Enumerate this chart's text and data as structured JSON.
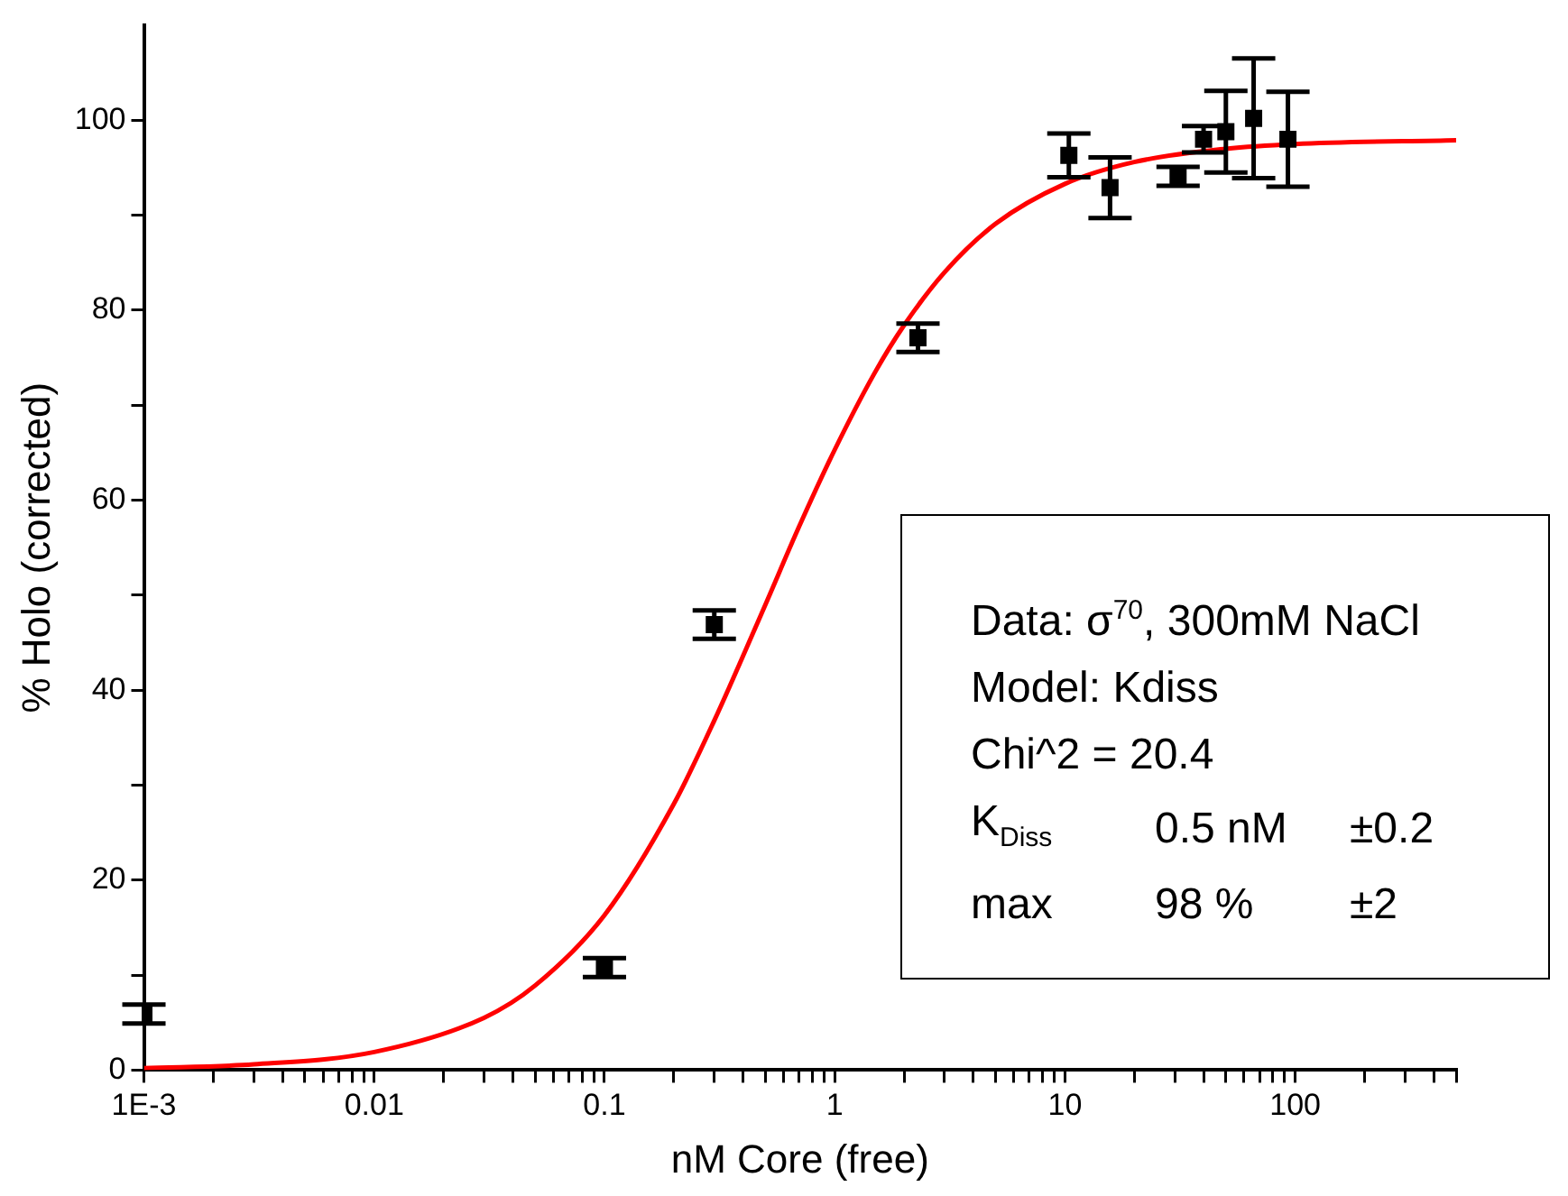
{
  "chart_data": {
    "type": "scatter",
    "xlabel": "nM Core (free)",
    "ylabel": "% Holo (corrected)",
    "log": "x",
    "grid": false,
    "legend": false,
    "xlim": [
      0.001,
      500
    ],
    "ylim": [
      0,
      110
    ],
    "xticks": [
      {
        "value": 0.001,
        "label": "1E-3"
      },
      {
        "value": 0.002,
        "label": null
      },
      {
        "value": 0.003,
        "label": null
      },
      {
        "value": 0.004,
        "label": null
      },
      {
        "value": 0.005,
        "label": null
      },
      {
        "value": 0.006,
        "label": null
      },
      {
        "value": 0.007,
        "label": null
      },
      {
        "value": 0.008,
        "label": null
      },
      {
        "value": 0.009,
        "label": null
      },
      0.01,
      {
        "value": 0.02,
        "label": null
      },
      {
        "value": 0.03,
        "label": null
      },
      {
        "value": 0.04,
        "label": null
      },
      {
        "value": 0.05,
        "label": null
      },
      {
        "value": 0.06,
        "label": null
      },
      {
        "value": 0.07,
        "label": null
      },
      {
        "value": 0.08,
        "label": null
      },
      {
        "value": 0.09,
        "label": null
      },
      0.1,
      {
        "value": 0.2,
        "label": null
      },
      {
        "value": 0.3,
        "label": null
      },
      {
        "value": 0.4,
        "label": null
      },
      {
        "value": 0.5,
        "label": null
      },
      {
        "value": 0.6,
        "label": null
      },
      {
        "value": 0.7,
        "label": null
      },
      {
        "value": 0.8,
        "label": null
      },
      {
        "value": 0.9,
        "label": null
      },
      1,
      {
        "value": 2,
        "label": null
      },
      {
        "value": 3,
        "label": null
      },
      {
        "value": 4,
        "label": null
      },
      {
        "value": 5,
        "label": null
      },
      {
        "value": 6,
        "label": null
      },
      {
        "value": 7,
        "label": null
      },
      {
        "value": 8,
        "label": null
      },
      {
        "value": 9,
        "label": null
      },
      10,
      {
        "value": 20,
        "label": null
      },
      {
        "value": 30,
        "label": null
      },
      {
        "value": 40,
        "label": null
      },
      {
        "value": 50,
        "label": null
      },
      {
        "value": 60,
        "label": null
      },
      {
        "value": 70,
        "label": null
      },
      {
        "value": 80,
        "label": null
      },
      {
        "value": 90,
        "label": null
      },
      100,
      {
        "value": 200,
        "label": null
      },
      {
        "value": 300,
        "label": null
      },
      {
        "value": 400,
        "label": null
      },
      {
        "value": 500,
        "label": null
      }
    ],
    "yticks": [
      0,
      {
        "value": 10,
        "label": null
      },
      20,
      {
        "value": 30,
        "label": null
      },
      40,
      {
        "value": 50,
        "label": null
      },
      60,
      {
        "value": 70,
        "label": null
      },
      80,
      {
        "value": 90,
        "label": null
      },
      100
    ],
    "series": [
      {
        "type": "scatter",
        "color": "#000000",
        "marker": "square",
        "x": [
          0.001,
          0.1,
          0.3,
          2.3,
          10.4,
          15.7,
          31,
          40,
          50,
          66,
          93
        ],
        "values": [
          5.9,
          10.8,
          46.9,
          77.1,
          96.3,
          92.9,
          94.1,
          98.0,
          98.8,
          100.2,
          98.0
        ],
        "errors": [
          1,
          1,
          1.5,
          1.5,
          2.3,
          3.2,
          1,
          1.4,
          4.3,
          6.3,
          5
        ]
      },
      {
        "type": "line",
        "color": "#ff0000",
        "marker": "none",
        "line_style": "solid",
        "x": [
          0.001,
          0.003,
          0.01,
          0.03,
          0.05,
          0.1,
          0.2,
          0.3,
          0.5,
          0.7,
          1,
          1.5,
          2,
          3,
          5,
          10,
          20,
          50,
          100,
          500
        ],
        "values": [
          0.2,
          0.6,
          1.9,
          5.5,
          8.9,
          16.3,
          28,
          36.8,
          49,
          57.2,
          65.3,
          73.5,
          78.4,
          84,
          89.1,
          93.3,
          95.6,
          97.0,
          97.5,
          97.9
        ]
      }
    ],
    "annotations": [
      "Data: σ$^{70}$, 300mM NaCl",
      "Model: Kdiss",
      "Chi^2 = 20.4",
      "K$_{Diss}$\t0.5 nM\t±0.2",
      "max\t98 %\t±2"
    ]
  }
}
